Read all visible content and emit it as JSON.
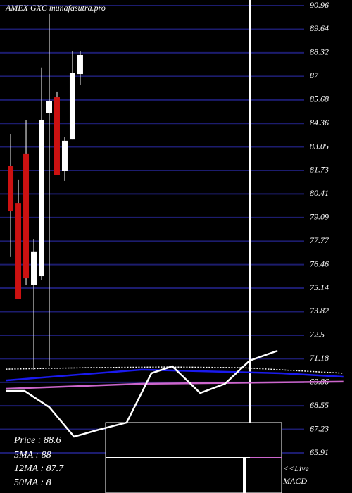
{
  "chart_data": {
    "type": "candlestick",
    "title": "AMEX GXC munafasutra.pro",
    "info": [
      "Price  : 88.6",
      "5MA : 88",
      "12MA : 87.7",
      "50MA : 8"
    ],
    "live_label": "<<Live",
    "macd_label": "MACD",
    "x": [
      0,
      1,
      2,
      3,
      4,
      5,
      6,
      7,
      8,
      9
    ],
    "open": [
      82.0,
      79.91,
      82.68,
      75.3,
      75.81,
      84.96,
      85.83,
      81.69,
      83.46,
      87.13
    ],
    "high": [
      83.78,
      81.22,
      84.57,
      77.88,
      87.5,
      90.49,
      86.15,
      83.59,
      88.4,
      88.4
    ],
    "low": [
      76.88,
      74.51,
      75.3,
      70.57,
      75.6,
      70.76,
      81.49,
      81.14,
      83.46,
      86.54
    ],
    "close": [
      79.44,
      74.51,
      75.69,
      77.16,
      84.57,
      85.63,
      81.49,
      83.39,
      87.21,
      88.2
    ],
    "up_color": "#ffffff",
    "down_color": "#cc1111",
    "lines": [
      {
        "color": "#ffffff",
        "dash": true,
        "x": [
          -0.6,
          10,
          20,
          30,
          43
        ],
        "values": [
          70.6,
          70.68,
          70.72,
          70.68,
          70.37
        ]
      },
      {
        "color": "#1a1aee",
        "dash": false,
        "x": [
          -0.6,
          17,
          35,
          43
        ],
        "values": [
          69.97,
          70.57,
          70.37,
          70.17
        ]
      },
      {
        "color": "#cc66cc",
        "dash": false,
        "x": [
          -0.6,
          17,
          43
        ],
        "values": [
          69.5,
          69.78,
          69.9
        ]
      },
      {
        "color": "#ffffff",
        "dash": false,
        "x": [
          -0.6,
          1.8,
          5,
          8.2,
          11.4,
          15,
          18.2,
          20.9,
          24.5,
          27.7,
          30.9,
          34.5
        ],
        "values": [
          69.38,
          69.38,
          68.47,
          66.82,
          67.21,
          67.61,
          70.37,
          70.76,
          69.26,
          69.78,
          71.08,
          71.63
        ]
      }
    ],
    "xlim": [
      -0.64,
      43.3
    ],
    "ylim": [
      65.91,
      90.96
    ],
    "yticks": [
      90.96,
      89.64,
      88.32,
      87,
      85.68,
      84.36,
      83.05,
      81.73,
      80.41,
      79.09,
      77.77,
      76.46,
      75.14,
      73.82,
      72.5,
      71.18,
      69.86,
      68.55,
      67.23,
      65.91
    ],
    "grid": true,
    "grid_color": "#1c1c6e"
  }
}
